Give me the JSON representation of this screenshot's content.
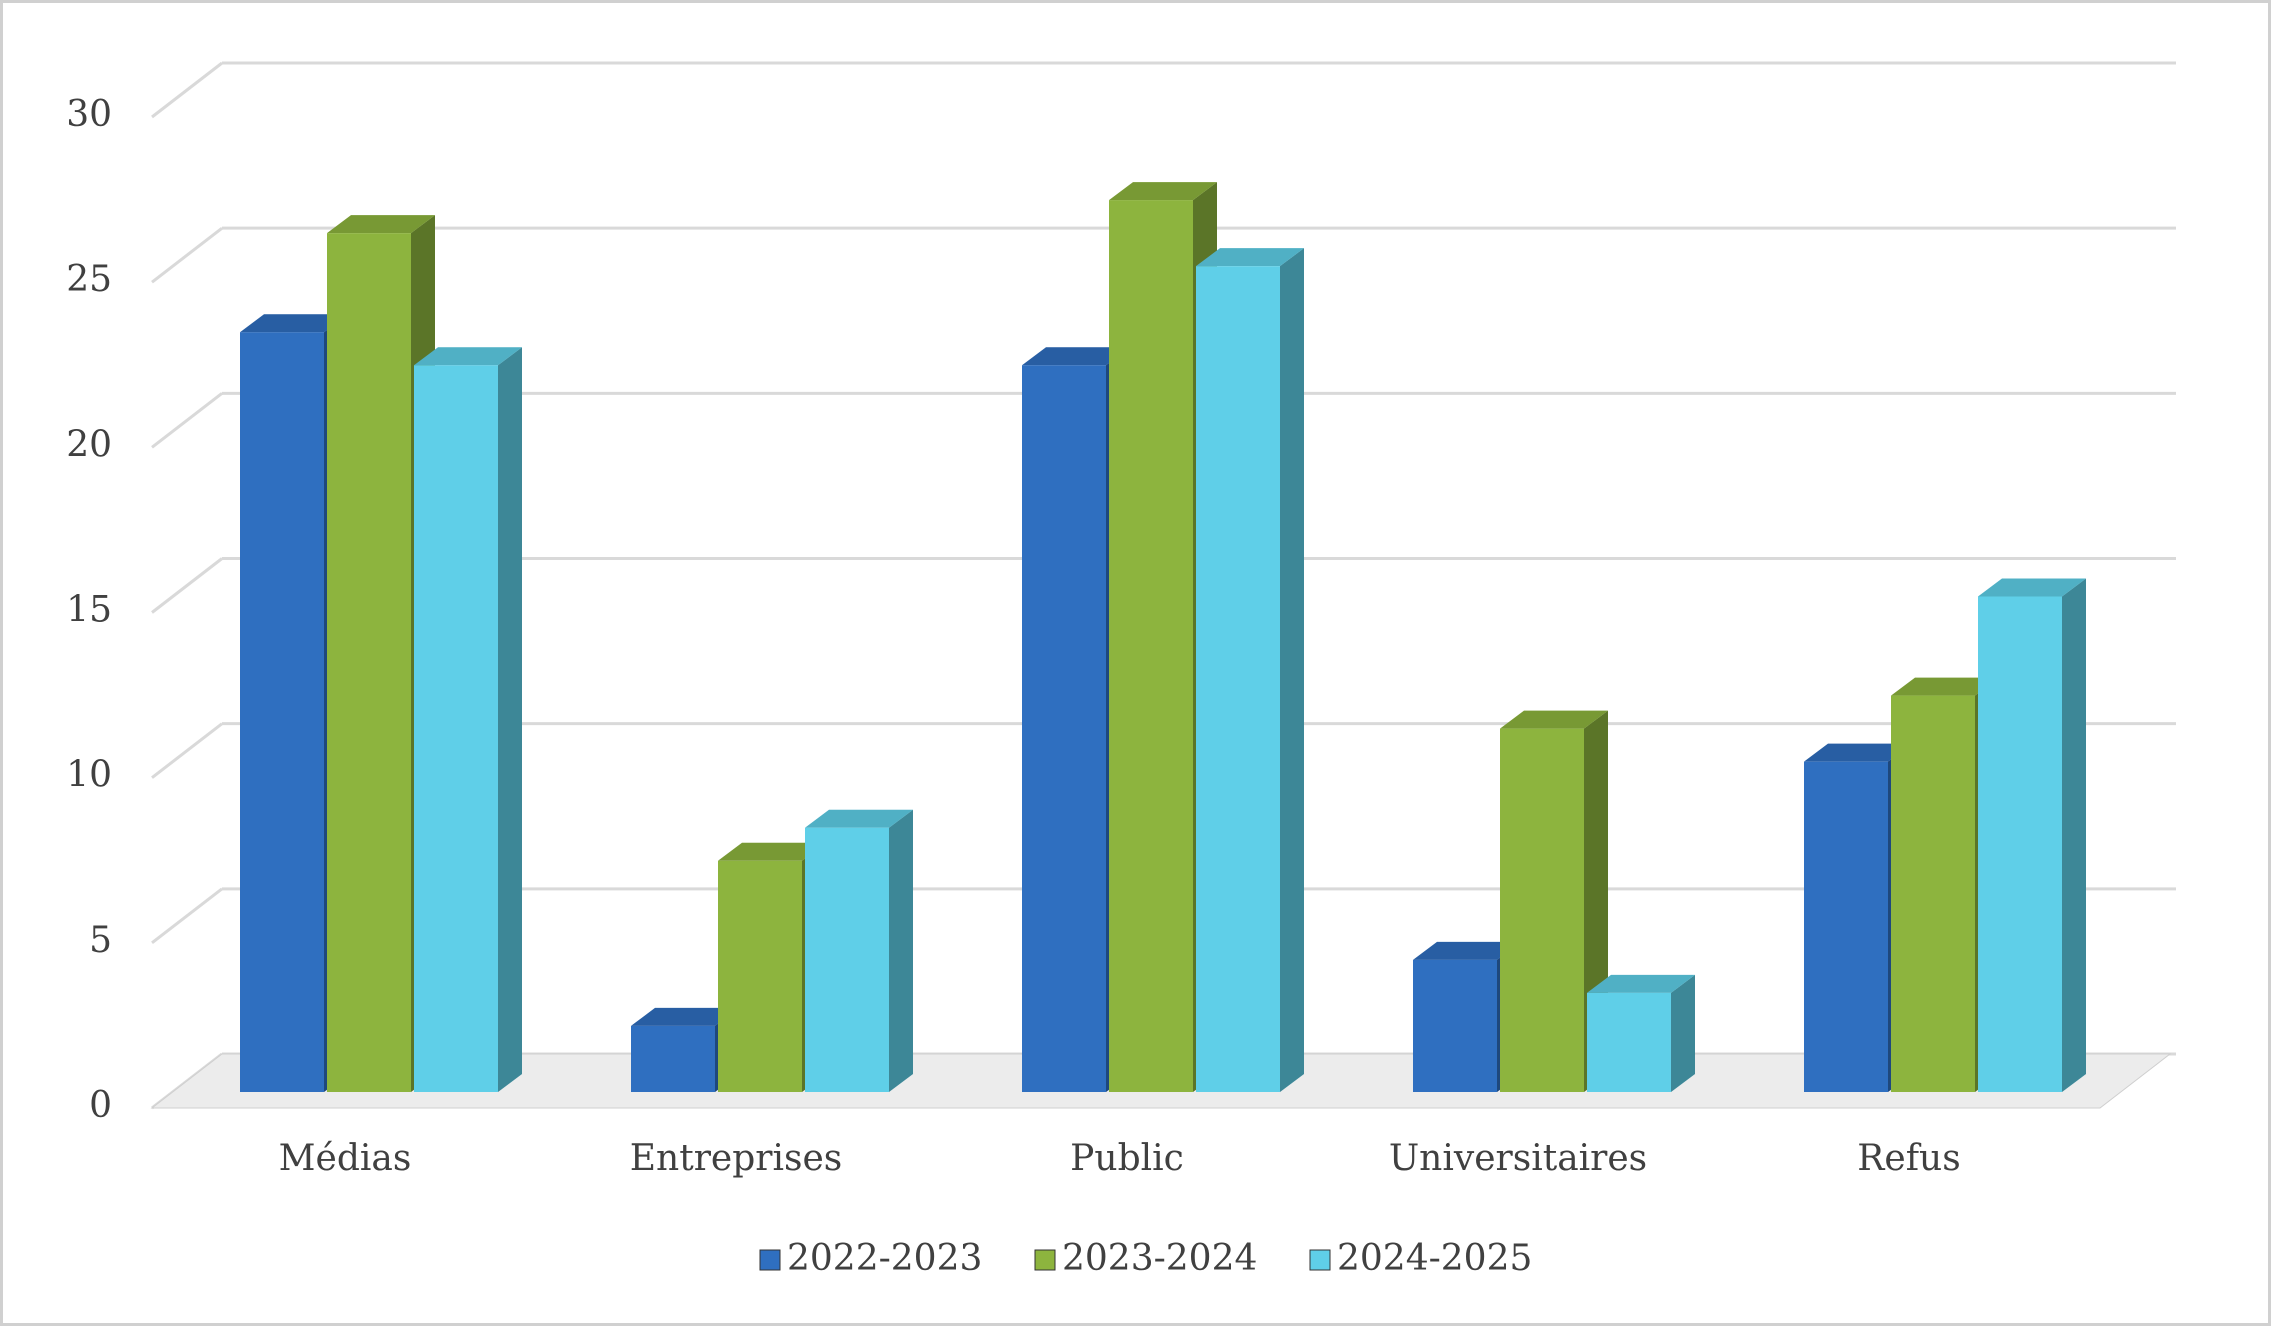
{
  "chart_data": {
    "type": "bar3d",
    "categories": [
      "Médias",
      "Entreprises",
      "Public",
      "Universitaires",
      "Refus"
    ],
    "series": [
      {
        "name": "2022-2023",
        "color": "#2f6fc0",
        "values": [
          23,
          2,
          22,
          4,
          10
        ]
      },
      {
        "name": "2023-2024",
        "color": "#8db43e",
        "values": [
          26,
          7,
          27,
          11,
          12
        ]
      },
      {
        "name": "2024-2025",
        "color": "#5fcfe8",
        "values": [
          22,
          8,
          25,
          3,
          15
        ]
      }
    ],
    "ylim": [
      0,
      30
    ],
    "yticks": [
      0,
      5,
      10,
      15,
      20,
      25,
      30
    ],
    "grid": true,
    "legend": "bottom"
  }
}
